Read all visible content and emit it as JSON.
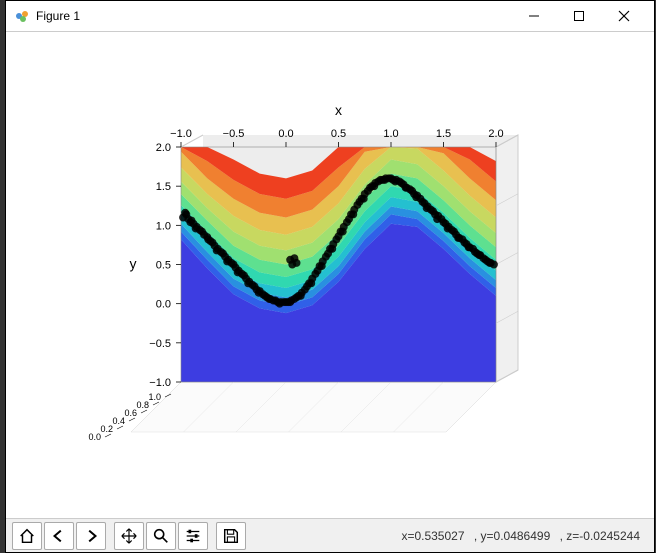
{
  "window": {
    "title": "Figure 1",
    "background_color": "#ffffff"
  },
  "chart": {
    "type": "3d-contour-scatter",
    "xlabel": "x",
    "ylabel": "y",
    "label_fontsize": 14,
    "tick_fontsize": 11,
    "x_ticks": [
      -1.0,
      -0.5,
      0.0,
      0.5,
      1.0,
      1.5,
      2.0
    ],
    "x_tick_labels": [
      "−1.0",
      "−0.5",
      "0.0",
      "0.5",
      "1.0",
      "1.5",
      "2.0"
    ],
    "y_ticks": [
      -1.0,
      -0.5,
      0.0,
      0.5,
      1.0,
      1.5,
      2.0
    ],
    "y_tick_labels": [
      "−1.0",
      "−0.5",
      "0.0",
      "0.5",
      "1.0",
      "1.5",
      "2.0"
    ],
    "z_ticks": [
      -1.0,
      -0.8,
      -0.6,
      -0.4,
      -0.2,
      0.0
    ],
    "z_tick_labels": [
      "1.0",
      "0.8",
      "0.6",
      "0.4",
      "0.2",
      "0.0"
    ],
    "xlim": [
      -1.0,
      2.0
    ],
    "ylim": [
      -1.0,
      2.0
    ],
    "zlim": [
      -1.0,
      0.0
    ],
    "grid_color": "#cccccc",
    "pane_color": "#ededed",
    "contour_colors_low_to_high": [
      "#3d3de1",
      "#3060e8",
      "#2990e0",
      "#24c0d0",
      "#30d8b0",
      "#5ee090",
      "#a0e070",
      "#c8d860",
      "#e8c050",
      "#f08030",
      "#ee4020"
    ],
    "contour_band_boundaries_y": [
      [
        -1.0,
        -1.0,
        -1.0,
        -1.0,
        -1.0,
        -1.0,
        -1.0,
        -1.0,
        -1.0,
        -1.0,
        -1.0,
        -1.0,
        -1.0
      ],
      [
        0.82,
        0.45,
        0.12,
        -0.06,
        -0.12,
        -0.02,
        0.28,
        0.7,
        1.02,
        0.98,
        0.7,
        0.38,
        0.1
      ],
      [
        0.92,
        0.56,
        0.22,
        0.04,
        -0.02,
        0.08,
        0.38,
        0.82,
        1.14,
        1.08,
        0.8,
        0.48,
        0.2
      ],
      [
        1.02,
        0.66,
        0.32,
        0.14,
        0.08,
        0.18,
        0.48,
        0.92,
        1.24,
        1.18,
        0.9,
        0.58,
        0.3
      ],
      [
        1.14,
        0.78,
        0.44,
        0.26,
        0.2,
        0.3,
        0.6,
        1.04,
        1.36,
        1.3,
        1.02,
        0.7,
        0.42
      ],
      [
        1.26,
        0.92,
        0.58,
        0.4,
        0.34,
        0.44,
        0.74,
        1.18,
        1.5,
        1.44,
        1.16,
        0.84,
        0.56
      ],
      [
        1.4,
        1.06,
        0.74,
        0.56,
        0.5,
        0.6,
        0.9,
        1.34,
        1.66,
        1.6,
        1.32,
        1.0,
        0.72
      ],
      [
        1.56,
        1.22,
        0.92,
        0.74,
        0.68,
        0.78,
        1.08,
        1.52,
        1.84,
        1.78,
        1.5,
        1.18,
        0.9
      ],
      [
        1.74,
        1.4,
        1.12,
        0.94,
        0.88,
        0.98,
        1.28,
        1.72,
        2.04,
        1.98,
        1.7,
        1.38,
        1.1
      ],
      [
        1.94,
        1.6,
        1.34,
        1.16,
        1.1,
        1.2,
        1.5,
        1.94,
        2.26,
        2.2,
        1.92,
        1.6,
        1.32
      ],
      [
        2.16,
        1.82,
        1.58,
        1.4,
        1.34,
        1.44,
        1.74,
        2.18,
        2.5,
        2.44,
        2.16,
        1.84,
        1.56
      ],
      [
        2.4,
        2.06,
        1.84,
        1.66,
        1.6,
        1.7,
        2.0,
        2.44,
        2.76,
        2.7,
        2.42,
        2.1,
        1.82
      ]
    ],
    "contour_x_samples": [
      -1.0,
      -0.75,
      -0.5,
      -0.25,
      0.0,
      0.25,
      0.5,
      0.75,
      1.0,
      1.25,
      1.5,
      1.75,
      2.0
    ],
    "scatter_color": "#000000",
    "scatter_alpha": 0.85,
    "scatter_size": 4,
    "scatter_points": [
      [
        -0.98,
        1.1
      ],
      [
        -0.95,
        1.14
      ],
      [
        -0.93,
        1.08
      ],
      [
        -0.9,
        1.06
      ],
      [
        -0.88,
        1.02
      ],
      [
        -0.85,
        0.98
      ],
      [
        -0.82,
        0.94
      ],
      [
        -0.8,
        0.92
      ],
      [
        -0.78,
        0.88
      ],
      [
        -0.75,
        0.85
      ],
      [
        -0.72,
        0.8
      ],
      [
        -0.7,
        0.78
      ],
      [
        -0.68,
        0.74
      ],
      [
        -0.65,
        0.7
      ],
      [
        -0.62,
        0.66
      ],
      [
        -0.6,
        0.64
      ],
      [
        -0.58,
        0.6
      ],
      [
        -0.55,
        0.56
      ],
      [
        -0.52,
        0.52
      ],
      [
        -0.5,
        0.5
      ],
      [
        -0.48,
        0.46
      ],
      [
        -0.45,
        0.42
      ],
      [
        -0.42,
        0.38
      ],
      [
        -0.4,
        0.36
      ],
      [
        -0.38,
        0.32
      ],
      [
        -0.35,
        0.28
      ],
      [
        -0.32,
        0.24
      ],
      [
        -0.3,
        0.22
      ],
      [
        -0.28,
        0.18
      ],
      [
        -0.25,
        0.16
      ],
      [
        -0.22,
        0.12
      ],
      [
        -0.2,
        0.1
      ],
      [
        -0.18,
        0.08
      ],
      [
        -0.15,
        0.06
      ],
      [
        -0.12,
        0.04
      ],
      [
        -0.1,
        0.04
      ],
      [
        -0.08,
        0.02
      ],
      [
        -0.05,
        0.02
      ],
      [
        -0.02,
        0.02
      ],
      [
        0.0,
        0.02
      ],
      [
        0.02,
        0.02
      ],
      [
        0.05,
        0.04
      ],
      [
        0.08,
        0.06
      ],
      [
        0.1,
        0.08
      ],
      [
        0.12,
        0.1
      ],
      [
        0.15,
        0.14
      ],
      [
        0.18,
        0.18
      ],
      [
        0.2,
        0.22
      ],
      [
        0.22,
        0.26
      ],
      [
        0.25,
        0.32
      ],
      [
        0.28,
        0.38
      ],
      [
        0.3,
        0.42
      ],
      [
        0.32,
        0.48
      ],
      [
        0.35,
        0.54
      ],
      [
        0.38,
        0.6
      ],
      [
        0.4,
        0.64
      ],
      [
        0.42,
        0.7
      ],
      [
        0.45,
        0.76
      ],
      [
        0.48,
        0.82
      ],
      [
        0.5,
        0.86
      ],
      [
        0.52,
        0.92
      ],
      [
        0.55,
        0.98
      ],
      [
        0.58,
        1.04
      ],
      [
        0.6,
        1.08
      ],
      [
        0.62,
        1.14
      ],
      [
        0.65,
        1.2
      ],
      [
        0.68,
        1.26
      ],
      [
        0.7,
        1.3
      ],
      [
        0.72,
        1.34
      ],
      [
        0.75,
        1.4
      ],
      [
        0.78,
        1.44
      ],
      [
        0.8,
        1.48
      ],
      [
        0.82,
        1.5
      ],
      [
        0.85,
        1.54
      ],
      [
        0.88,
        1.56
      ],
      [
        0.9,
        1.58
      ],
      [
        0.92,
        1.58
      ],
      [
        0.95,
        1.6
      ],
      [
        0.98,
        1.6
      ],
      [
        1.0,
        1.6
      ],
      [
        1.02,
        1.58
      ],
      [
        1.05,
        1.58
      ],
      [
        1.08,
        1.56
      ],
      [
        1.1,
        1.54
      ],
      [
        1.12,
        1.52
      ],
      [
        1.15,
        1.48
      ],
      [
        1.18,
        1.46
      ],
      [
        1.2,
        1.44
      ],
      [
        1.22,
        1.4
      ],
      [
        1.25,
        1.38
      ],
      [
        1.28,
        1.34
      ],
      [
        1.3,
        1.3
      ],
      [
        1.32,
        1.28
      ],
      [
        1.35,
        1.24
      ],
      [
        1.38,
        1.2
      ],
      [
        1.4,
        1.18
      ],
      [
        1.42,
        1.14
      ],
      [
        1.45,
        1.12
      ],
      [
        1.48,
        1.08
      ],
      [
        1.5,
        1.04
      ],
      [
        1.52,
        1.02
      ],
      [
        1.55,
        0.98
      ],
      [
        1.58,
        0.94
      ],
      [
        1.6,
        0.92
      ],
      [
        1.62,
        0.88
      ],
      [
        1.65,
        0.84
      ],
      [
        1.68,
        0.82
      ],
      [
        1.7,
        0.78
      ],
      [
        1.72,
        0.76
      ],
      [
        1.75,
        0.72
      ],
      [
        1.78,
        0.7
      ],
      [
        1.8,
        0.66
      ],
      [
        1.82,
        0.64
      ],
      [
        1.85,
        0.62
      ],
      [
        1.88,
        0.58
      ],
      [
        1.9,
        0.56
      ],
      [
        1.92,
        0.54
      ],
      [
        1.95,
        0.52
      ],
      [
        1.98,
        0.5
      ],
      [
        -0.96,
        1.16
      ],
      [
        -0.91,
        1.04
      ],
      [
        -0.86,
        0.96
      ],
      [
        -0.74,
        0.82
      ],
      [
        -0.66,
        0.68
      ],
      [
        -0.56,
        0.54
      ],
      [
        -0.46,
        0.4
      ],
      [
        -0.36,
        0.26
      ],
      [
        -0.26,
        0.14
      ],
      [
        -0.16,
        0.06
      ],
      [
        -0.06,
        0.0
      ],
      [
        0.04,
        0.02
      ],
      [
        0.14,
        0.1
      ],
      [
        0.24,
        0.26
      ],
      [
        0.34,
        0.48
      ],
      [
        0.04,
        0.56
      ],
      [
        0.06,
        0.5
      ],
      [
        0.08,
        0.58
      ],
      [
        0.1,
        0.52
      ],
      [
        0.44,
        0.7
      ],
      [
        0.54,
        0.92
      ],
      [
        0.64,
        1.14
      ],
      [
        0.74,
        1.34
      ],
      [
        0.84,
        1.5
      ],
      [
        0.94,
        1.58
      ],
      [
        1.04,
        1.56
      ],
      [
        1.14,
        1.48
      ],
      [
        1.24,
        1.36
      ],
      [
        1.34,
        1.22
      ],
      [
        1.44,
        1.08
      ],
      [
        1.54,
        0.96
      ],
      [
        1.64,
        0.84
      ],
      [
        1.74,
        0.72
      ],
      [
        1.84,
        0.62
      ],
      [
        1.94,
        0.52
      ]
    ]
  },
  "toolbar": {
    "buttons": [
      "home",
      "back",
      "forward",
      "pan",
      "zoom",
      "configure",
      "save"
    ]
  },
  "status": {
    "x_label": "x=0.535027",
    "y_label": ", y=0.0486499",
    "z_label": ", z=-0.0245244"
  }
}
